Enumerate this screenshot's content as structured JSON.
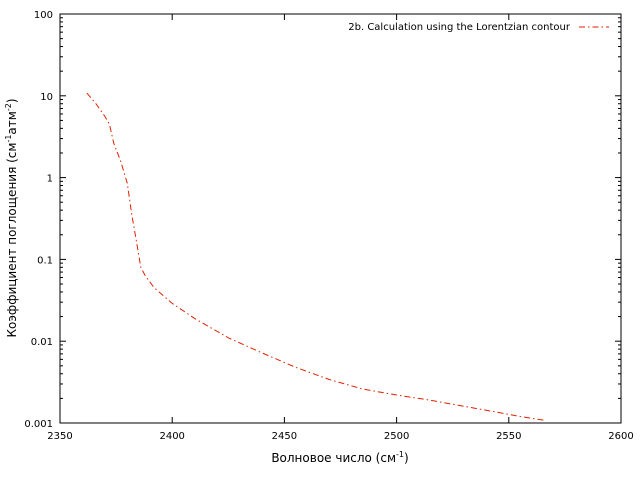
{
  "chart_data": {
    "type": "line",
    "title": "",
    "xlabel": "Волновое число (см",
    "xlabel_sup": "-1",
    "xlabel_end": ")",
    "ylabel": "Коэффициент поглощения (см",
    "ylabel_sup1": "-1",
    "ylabel_mid": "атм",
    "ylabel_sup2": "-2",
    "ylabel_end": ")",
    "xlim": [
      2350,
      2600
    ],
    "ylim": [
      0.001,
      100
    ],
    "yscale": "log",
    "grid": false,
    "legend_position": "top-right",
    "xticks": [
      2350,
      2400,
      2450,
      2500,
      2550,
      2600
    ],
    "xtick_labels": [
      "2350",
      "2400",
      "2450",
      "2500",
      "2550",
      "2600"
    ],
    "yticks": [
      0.001,
      0.01,
      0.1,
      1,
      10,
      100
    ],
    "ytick_labels": [
      "0.001",
      "0.01",
      "0.1",
      "1",
      "10",
      "100"
    ],
    "series": [
      {
        "name": "2b. Calculation using the Lorentzian contour",
        "color": "#dd2200",
        "style": "dash-dot",
        "x": [
          2362,
          2366,
          2370,
          2372,
          2374,
          2377,
          2380,
          2382,
          2384,
          2386,
          2388,
          2392,
          2400,
          2410,
          2425,
          2440,
          2455,
          2470,
          2485,
          2500,
          2515,
          2530,
          2545,
          2555,
          2566
        ],
        "y": [
          10.8,
          8.0,
          5.6,
          4.5,
          2.6,
          1.6,
          0.85,
          0.35,
          0.17,
          0.08,
          0.063,
          0.045,
          0.029,
          0.019,
          0.011,
          0.0072,
          0.0048,
          0.0034,
          0.0026,
          0.0022,
          0.0019,
          0.0016,
          0.00135,
          0.0012,
          0.00108
        ]
      }
    ]
  }
}
